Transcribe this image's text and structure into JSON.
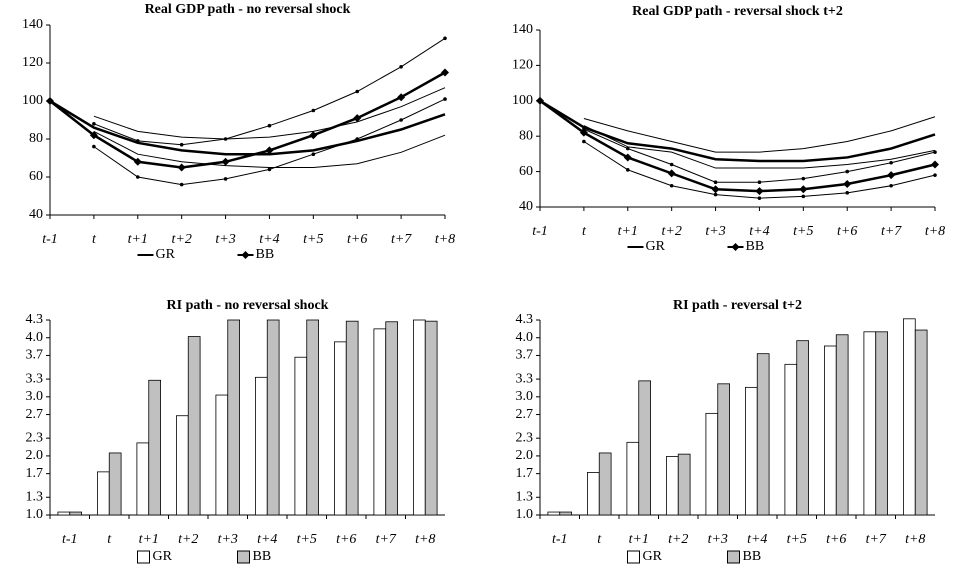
{
  "chart_data": [
    {
      "type": "line",
      "title": "Real GDP path - no reversal shock",
      "categories": [
        "t-1",
        "t",
        "t+1",
        "t+2",
        "t+3",
        "t+4",
        "t+5",
        "t+6",
        "t+7",
        "t+8"
      ],
      "ylim": [
        40,
        140
      ],
      "yticks": [
        40,
        60,
        80,
        100,
        120,
        140
      ],
      "legend": "bottom",
      "series": [
        {
          "name": "GR",
          "color": "#000000",
          "values": [
            100,
            86,
            78,
            74,
            72,
            72,
            74,
            79,
            85,
            93
          ]
        },
        {
          "name": "BB",
          "color": "#000000",
          "marker": "diamond",
          "values": [
            100,
            82,
            68,
            65,
            68,
            74,
            82,
            91,
            102,
            115
          ]
        },
        {
          "color": "#000000",
          "values": [
            null,
            92,
            84,
            81,
            80,
            81,
            84,
            89,
            97,
            107
          ]
        },
        {
          "color": "#000000",
          "values": [
            null,
            84,
            72,
            68,
            66,
            65,
            65,
            67,
            73,
            82
          ]
        },
        {
          "color": "#000000",
          "marker": "dot",
          "values": [
            null,
            88,
            79,
            77,
            80,
            87,
            95,
            105,
            118,
            133
          ]
        },
        {
          "color": "#000000",
          "marker": "dot",
          "values": [
            null,
            76,
            60,
            56,
            59,
            64,
            72,
            80,
            90,
            101
          ]
        }
      ]
    },
    {
      "type": "line",
      "title": "Real GDP path - reversal shock t+2",
      "categories": [
        "t-1",
        "t",
        "t+1",
        "t+2",
        "t+3",
        "t+4",
        "t+5",
        "t+6",
        "t+7",
        "t+8"
      ],
      "ylim": [
        40,
        140
      ],
      "yticks": [
        40,
        60,
        80,
        100,
        120,
        140
      ],
      "legend": "bottom",
      "series": [
        {
          "name": "GR",
          "color": "#000000",
          "values": [
            100,
            85,
            76,
            73,
            67,
            66,
            66,
            68,
            73,
            81
          ]
        },
        {
          "name": "BB",
          "color": "#000000",
          "marker": "diamond",
          "values": [
            100,
            82,
            68,
            59,
            50,
            49,
            50,
            53,
            58,
            64
          ]
        },
        {
          "color": "#000000",
          "values": [
            null,
            90,
            83,
            77,
            71,
            71,
            73,
            77,
            83,
            91
          ]
        },
        {
          "color": "#000000",
          "values": [
            null,
            86,
            74,
            71,
            62,
            62,
            62,
            64,
            67,
            72
          ]
        },
        {
          "color": "#000000",
          "marker": "dot",
          "values": [
            null,
            84,
            73,
            64,
            54,
            54,
            56,
            60,
            65,
            71
          ]
        },
        {
          "color": "#000000",
          "marker": "dot",
          "values": [
            null,
            77,
            61,
            52,
            47,
            45,
            46,
            48,
            52,
            58
          ]
        }
      ]
    },
    {
      "type": "bar",
      "title": "RI path - no reversal shock",
      "categories": [
        "t-1",
        "t",
        "t+1",
        "t+2",
        "t+3",
        "t+4",
        "t+5",
        "t+6",
        "t+7",
        "t+8"
      ],
      "ylim": [
        1.0,
        4.3
      ],
      "yticks": [
        {
          "value": 1,
          "label": "1.0"
        },
        1.3,
        1.7,
        {
          "value": 2,
          "label": "2.0"
        },
        2.3,
        2.7,
        {
          "value": 3,
          "label": "3.0"
        },
        3.3,
        3.7,
        {
          "value": 4,
          "label": "4.0"
        },
        4.3
      ],
      "legend": "bottom",
      "series": [
        {
          "name": "GR",
          "color": "#ffffff",
          "values": [
            1.05,
            1.73,
            2.22,
            2.68,
            3.03,
            3.33,
            3.67,
            3.93,
            4.15,
            4.3
          ]
        },
        {
          "name": "BB",
          "color": "#c0c0c0",
          "values": [
            1.05,
            2.05,
            3.28,
            4.02,
            4.3,
            4.3,
            4.3,
            4.28,
            4.27,
            4.28
          ]
        }
      ]
    },
    {
      "type": "bar",
      "title": "RI path - reversal t+2",
      "categories": [
        "t-1",
        "t",
        "t+1",
        "t+2",
        "t+3",
        "t+4",
        "t+5",
        "t+6",
        "t+7",
        "t+8"
      ],
      "ylim": [
        1.0,
        4.3
      ],
      "yticks": [
        {
          "value": 1,
          "label": "1.0"
        },
        1.3,
        1.7,
        {
          "value": 2,
          "label": "2.0"
        },
        2.3,
        2.7,
        {
          "value": 3,
          "label": "3.0"
        },
        3.3,
        3.7,
        {
          "value": 4,
          "label": "4.0"
        },
        4.3
      ],
      "legend": "bottom",
      "series": [
        {
          "name": "GR",
          "color": "#ffffff",
          "values": [
            1.05,
            1.72,
            2.23,
            1.99,
            2.72,
            3.16,
            3.55,
            3.86,
            4.1,
            4.32
          ]
        },
        {
          "name": "BB",
          "color": "#c0c0c0",
          "values": [
            1.05,
            2.05,
            3.27,
            2.03,
            3.22,
            3.73,
            3.95,
            4.05,
            4.1,
            4.13
          ]
        }
      ]
    }
  ]
}
